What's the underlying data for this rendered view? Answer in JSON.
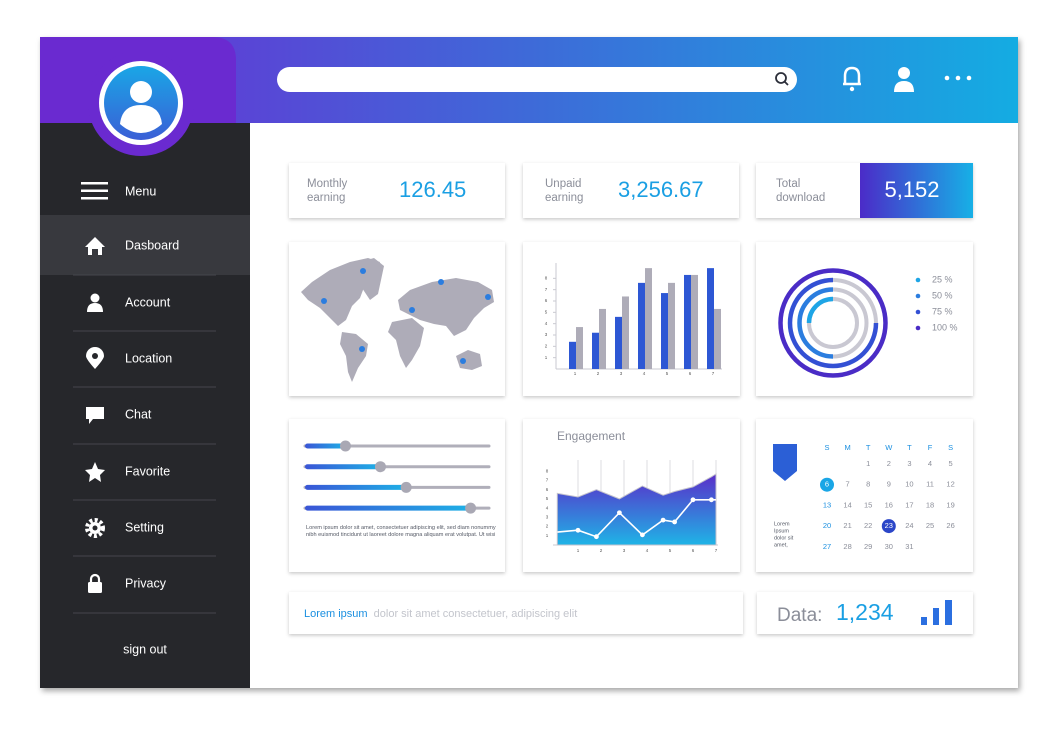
{
  "sidebar": {
    "menu": "Menu",
    "items": [
      "Dasboard",
      "Account",
      "Location",
      "Chat",
      "Favorite",
      "Setting",
      "Privacy"
    ],
    "sign_out": "sign out"
  },
  "stats": [
    {
      "label": [
        "Monthly",
        "earning"
      ],
      "value": "126.45"
    },
    {
      "label": [
        "Unpaid",
        "earning"
      ],
      "value": "3,256.67"
    },
    {
      "label": [
        "Total",
        "download"
      ],
      "value": "5,152"
    }
  ],
  "bar_chart": {
    "type": "bar",
    "categories": [
      "1",
      "2",
      "3",
      "4",
      "5",
      "6",
      "7"
    ],
    "ylim": [
      0,
      9
    ],
    "yticks": [
      1,
      2,
      3,
      4,
      5,
      6,
      7,
      8
    ],
    "series": [
      {
        "color": "#2d57d4",
        "values": [
          2.4,
          3.2,
          4.6,
          7.6,
          6.7,
          8.3,
          8.9
        ]
      },
      {
        "color": "#aeacb8",
        "values": [
          3.7,
          5.3,
          6.4,
          8.9,
          7.6,
          8.3,
          5.3
        ]
      }
    ]
  },
  "donut": {
    "type": "donut",
    "values": [
      25,
      50,
      75,
      100
    ],
    "value_labels": [
      "25 %",
      "50 %",
      "75 %",
      "100 %"
    ],
    "colors": [
      "#1ea5e6",
      "#2b7ddf",
      "#3350d4",
      "#4a2cc6"
    ]
  },
  "sliders": {
    "values": [
      0.22,
      0.41,
      0.55,
      0.9
    ],
    "text": "Lorem ipsum dolor sit amet, consectetuer adipiscing elit, sed diam nonummy nibh euismod tincidunt ut laoreet dolore magna aliquam erat volutpat. Ut wisi"
  },
  "engagement": {
    "type": "line",
    "title": "Engagement",
    "x": [
      0.1,
      1,
      1.8,
      2.8,
      3.8,
      4.7,
      5.2,
      6,
      6.8,
      7
    ],
    "xlim": [
      0,
      7
    ],
    "xticks": [
      1,
      2,
      3,
      4,
      5,
      6,
      7
    ],
    "ylim": [
      0,
      9
    ],
    "yticks": [
      1,
      2,
      3,
      4,
      5,
      6,
      7,
      8
    ],
    "series": [
      {
        "type": "area",
        "values": [
          5.6,
          5.2,
          6.0,
          5.0,
          6.4,
          5.4,
          5.8,
          6.3,
          7.4,
          7.7
        ]
      },
      {
        "type": "line",
        "values": [
          1.4,
          1.6,
          0.9,
          3.5,
          1.1,
          2.7,
          2.5,
          4.9,
          4.9,
          4.9
        ]
      }
    ]
  },
  "calendar": {
    "weekdays": [
      "S",
      "M",
      "T",
      "W",
      "T",
      "F",
      "S"
    ],
    "rows": [
      [
        null,
        null,
        "1",
        "2",
        "3",
        "4",
        "5"
      ],
      [
        "6",
        "7",
        "8",
        "9",
        "10",
        "11",
        "12"
      ],
      [
        "13",
        "14",
        "15",
        "16",
        "17",
        "18",
        "19"
      ],
      [
        "20",
        "21",
        "22",
        "23",
        "24",
        "25",
        "26"
      ],
      [
        "27",
        "28",
        "29",
        "30",
        "31",
        null,
        null
      ]
    ],
    "note": [
      "Lorem",
      "Ipsum",
      "dolor sit",
      "amet,"
    ]
  },
  "footer_text": {
    "highlight": "Lorem ipsum",
    "rest": "dolor sit amet consectetuer, adipiscing elit"
  },
  "data_card": {
    "label": "Data:",
    "value": "1,234"
  }
}
